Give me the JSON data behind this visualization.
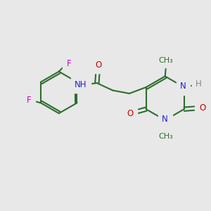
{
  "bg_color": "#e8e8e8",
  "bond_color": "#2d6e2d",
  "bond_width": 1.5,
  "atom_colors": {
    "O": "#cc0000",
    "N": "#2222cc",
    "F": "#cc00cc",
    "H": "#888888",
    "C": "#2d6e2d"
  },
  "font_size": 8.5,
  "fig_size": [
    3.0,
    3.0
  ],
  "dpi": 100,
  "xlim": [
    0,
    10
  ],
  "ylim": [
    0,
    10
  ]
}
